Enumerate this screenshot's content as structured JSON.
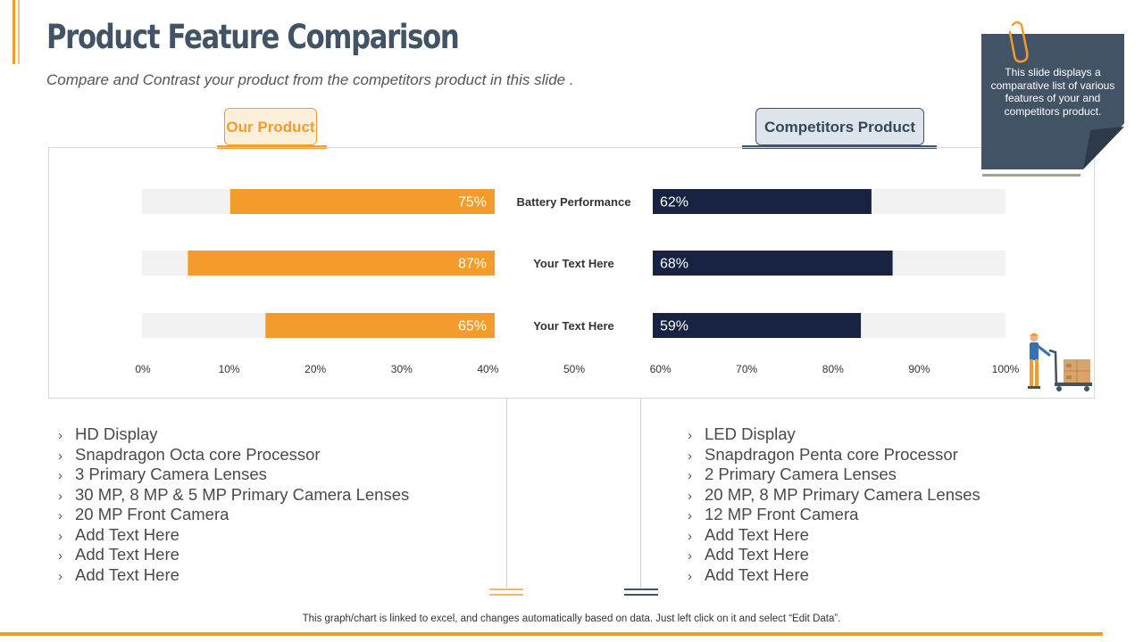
{
  "header": {
    "title": "Product Feature Comparison",
    "subtitle": "Compare and Contrast your product from the competitors product in this slide ."
  },
  "tabs": {
    "our": "Our Product",
    "competitor": "Competitors Product"
  },
  "note": {
    "text": "This slide displays a comparative list of various features of your and competitors product."
  },
  "colors": {
    "accent": "#F39C2B",
    "navy": "#172340",
    "slate": "#435366",
    "track": "#F2F2F2"
  },
  "chart_data": {
    "type": "bar",
    "orientation": "horizontal",
    "categories": [
      "Battery Performance",
      "Your Text Here",
      "Your Text Here"
    ],
    "series": [
      {
        "name": "Our Product",
        "values": [
          75,
          87,
          65
        ],
        "labels": [
          "75%",
          "87%",
          "65%"
        ]
      },
      {
        "name": "Competitors Product",
        "values": [
          62,
          68,
          59
        ],
        "labels": [
          "62%",
          "68%",
          "59%"
        ]
      }
    ],
    "x_ticks": [
      "0%",
      "10%",
      "20%",
      "30%",
      "40%",
      "50%",
      "60%",
      "70%",
      "80%",
      "90%",
      "100%"
    ],
    "xlim": [
      0,
      100
    ]
  },
  "our_features": [
    "HD Display",
    "Snapdragon Octa core Processor",
    "3 Primary Camera Lenses",
    "30 MP, 8 MP & 5 MP Primary Camera Lenses",
    "20 MP Front Camera",
    "Add Text Here",
    "Add Text Here",
    "Add Text Here"
  ],
  "competitor_features": [
    "LED Display",
    "Snapdragon Penta core Processor",
    "2 Primary Camera Lenses",
    "20 MP, 8 MP Primary Camera Lenses",
    "12 MP Front Camera",
    "Add Text Here",
    "Add Text Here",
    "Add Text Here"
  ],
  "bullet_glyph": "›",
  "footer": {
    "note": "This graph/chart is linked to excel,  and changes automatically based on data. Just left click on it and select “Edit Data”."
  }
}
